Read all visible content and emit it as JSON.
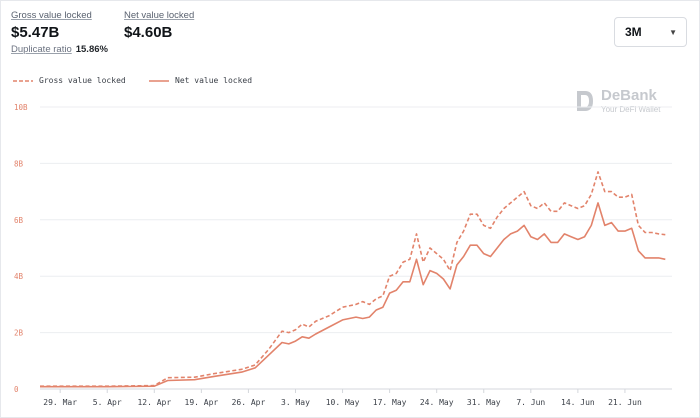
{
  "stats": {
    "gross": {
      "label": "Gross value locked",
      "value": "$5.47B"
    },
    "net": {
      "label": "Net value locked",
      "value": "$4.60B"
    },
    "duplicate": {
      "label": "Duplicate ratio",
      "value": "15.86%"
    }
  },
  "range_selector": {
    "value": "3M"
  },
  "brand": {
    "name": "DeBank",
    "tagline": "Your DeFi Wallet"
  },
  "colors": {
    "series": "#e2836b",
    "grid": "#eceef1",
    "axis": "#d4d7dc"
  },
  "chart_data": {
    "type": "line",
    "ylabel": "",
    "xlabel": "",
    "ylim": [
      0,
      10
    ],
    "yticks": [
      "0",
      "2B",
      "4B",
      "6B",
      "8B",
      "10B"
    ],
    "xticks": [
      "29. Mar",
      "5. Apr",
      "12. Apr",
      "19. Apr",
      "26. Apr",
      "3. May",
      "10. May",
      "17. May",
      "24. May",
      "31. May",
      "7. Jun",
      "14. Jun",
      "21. Jun"
    ],
    "x_unit": "days since 29. Mar",
    "series": [
      {
        "name": "Gross value locked",
        "style": "dashed",
        "points": [
          [
            -3,
            0.1
          ],
          [
            0,
            0.1
          ],
          [
            7,
            0.1
          ],
          [
            14,
            0.12
          ],
          [
            16,
            0.4
          ],
          [
            20,
            0.42
          ],
          [
            23,
            0.55
          ],
          [
            27,
            0.7
          ],
          [
            29,
            0.85
          ],
          [
            31,
            1.4
          ],
          [
            33,
            2.05
          ],
          [
            34,
            2.0
          ],
          [
            35,
            2.1
          ],
          [
            36,
            2.3
          ],
          [
            37,
            2.2
          ],
          [
            38,
            2.4
          ],
          [
            40,
            2.6
          ],
          [
            42,
            2.9
          ],
          [
            44,
            3.0
          ],
          [
            45,
            3.1
          ],
          [
            46,
            3.0
          ],
          [
            47,
            3.2
          ],
          [
            48,
            3.3
          ],
          [
            49,
            4.0
          ],
          [
            50,
            4.1
          ],
          [
            51,
            4.5
          ],
          [
            52,
            4.6
          ],
          [
            53,
            5.5
          ],
          [
            54,
            4.5
          ],
          [
            55,
            5.0
          ],
          [
            56,
            4.8
          ],
          [
            57,
            4.6
          ],
          [
            58,
            4.2
          ],
          [
            59,
            5.2
          ],
          [
            60,
            5.6
          ],
          [
            61,
            6.2
          ],
          [
            62,
            6.2
          ],
          [
            63,
            5.8
          ],
          [
            64,
            5.7
          ],
          [
            65,
            6.1
          ],
          [
            66,
            6.4
          ],
          [
            67,
            6.6
          ],
          [
            68,
            6.8
          ],
          [
            69,
            7.0
          ],
          [
            70,
            6.5
          ],
          [
            71,
            6.4
          ],
          [
            72,
            6.6
          ],
          [
            73,
            6.3
          ],
          [
            74,
            6.3
          ],
          [
            75,
            6.6
          ],
          [
            76,
            6.5
          ],
          [
            77,
            6.4
          ],
          [
            78,
            6.5
          ],
          [
            79,
            6.9
          ],
          [
            80,
            7.7
          ],
          [
            81,
            7.0
          ],
          [
            82,
            7.0
          ],
          [
            83,
            6.8
          ],
          [
            84,
            6.8
          ],
          [
            85,
            6.9
          ],
          [
            86,
            5.8
          ],
          [
            87,
            5.55
          ],
          [
            88,
            5.55
          ],
          [
            89,
            5.5
          ],
          [
            90,
            5.47
          ]
        ]
      },
      {
        "name": "Net value locked",
        "style": "solid",
        "points": [
          [
            -3,
            0.08
          ],
          [
            0,
            0.08
          ],
          [
            7,
            0.08
          ],
          [
            14,
            0.1
          ],
          [
            16,
            0.3
          ],
          [
            20,
            0.33
          ],
          [
            23,
            0.45
          ],
          [
            27,
            0.6
          ],
          [
            29,
            0.75
          ],
          [
            31,
            1.2
          ],
          [
            33,
            1.65
          ],
          [
            34,
            1.6
          ],
          [
            35,
            1.7
          ],
          [
            36,
            1.85
          ],
          [
            37,
            1.8
          ],
          [
            38,
            1.95
          ],
          [
            40,
            2.2
          ],
          [
            42,
            2.45
          ],
          [
            44,
            2.55
          ],
          [
            45,
            2.5
          ],
          [
            46,
            2.55
          ],
          [
            47,
            2.8
          ],
          [
            48,
            2.9
          ],
          [
            49,
            3.4
          ],
          [
            50,
            3.5
          ],
          [
            51,
            3.8
          ],
          [
            52,
            3.8
          ],
          [
            53,
            4.6
          ],
          [
            54,
            3.7
          ],
          [
            55,
            4.2
          ],
          [
            56,
            4.1
          ],
          [
            57,
            3.9
          ],
          [
            58,
            3.55
          ],
          [
            59,
            4.4
          ],
          [
            60,
            4.7
          ],
          [
            61,
            5.1
          ],
          [
            62,
            5.1
          ],
          [
            63,
            4.8
          ],
          [
            64,
            4.7
          ],
          [
            65,
            5.0
          ],
          [
            66,
            5.3
          ],
          [
            67,
            5.5
          ],
          [
            68,
            5.6
          ],
          [
            69,
            5.8
          ],
          [
            70,
            5.4
          ],
          [
            71,
            5.3
          ],
          [
            72,
            5.5
          ],
          [
            73,
            5.2
          ],
          [
            74,
            5.2
          ],
          [
            75,
            5.5
          ],
          [
            76,
            5.4
          ],
          [
            77,
            5.3
          ],
          [
            78,
            5.4
          ],
          [
            79,
            5.8
          ],
          [
            80,
            6.6
          ],
          [
            81,
            5.8
          ],
          [
            82,
            5.9
          ],
          [
            83,
            5.6
          ],
          [
            84,
            5.6
          ],
          [
            85,
            5.7
          ],
          [
            86,
            4.9
          ],
          [
            87,
            4.65
          ],
          [
            88,
            4.65
          ],
          [
            89,
            4.65
          ],
          [
            90,
            4.6
          ]
        ]
      }
    ]
  }
}
